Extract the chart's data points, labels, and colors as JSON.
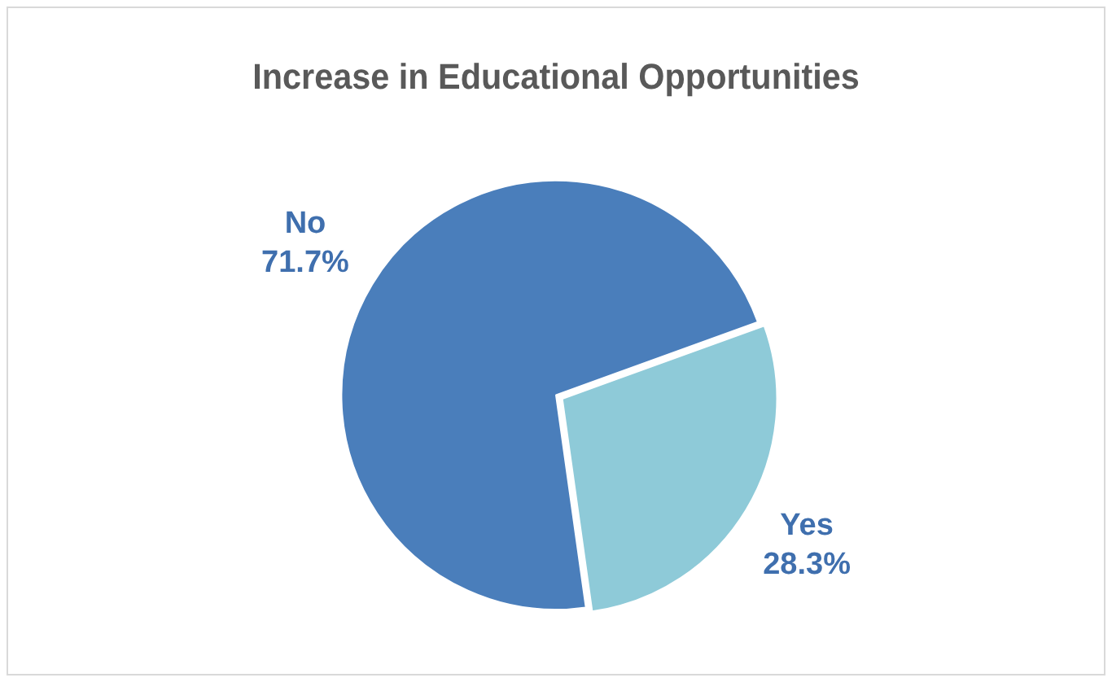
{
  "chart_data": {
    "type": "pie",
    "title": "Increase in Educational Opportunities",
    "categories": [
      "No",
      "Yes"
    ],
    "values": [
      71.7,
      28.3
    ],
    "colors": [
      "#4a7ebb",
      "#8ecad8"
    ],
    "value_labels": [
      "71.7%",
      "28.3%"
    ],
    "legend": false
  }
}
